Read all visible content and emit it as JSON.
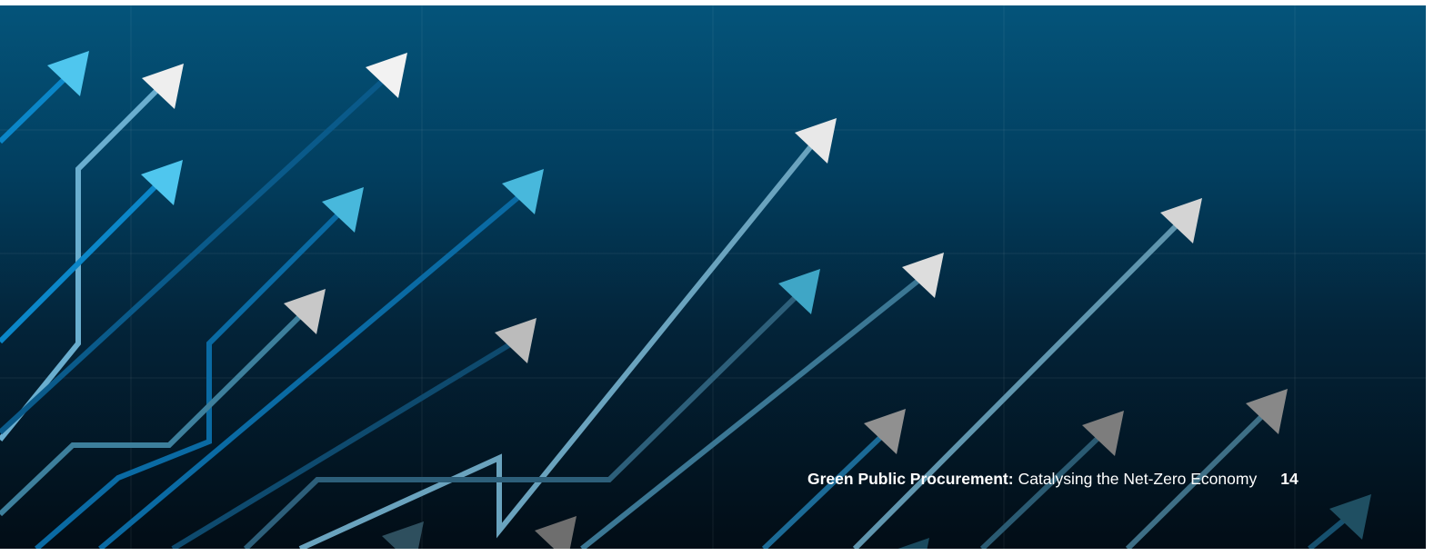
{
  "footer": {
    "report_title": "Green Public Procurement:",
    "report_subtitle": "Catalysing the Net-Zero Economy",
    "page_number": "14"
  }
}
